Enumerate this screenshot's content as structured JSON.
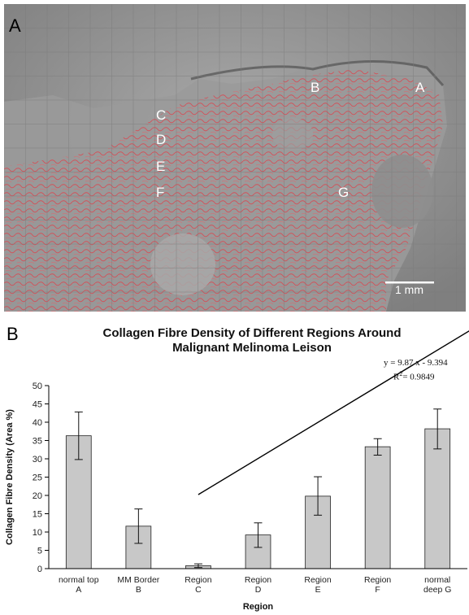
{
  "figure": {
    "panel_a_letter": "A",
    "panel_b_letter": "B",
    "region_markers": [
      "A",
      "B",
      "C",
      "D",
      "E",
      "F",
      "G"
    ],
    "scale_bar_label": "1 mm"
  },
  "chart_data": {
    "type": "bar",
    "title_line1": "Collagen Fibre Density of Different Regions Around",
    "title_line2": "Malignant Melinoma Leison",
    "xlabel": "Region",
    "ylabel": "Collagen Fibre Density (Area %)",
    "ylim": [
      0,
      50
    ],
    "yticks": [
      0,
      5,
      10,
      15,
      20,
      25,
      30,
      35,
      40,
      45,
      50
    ],
    "categories": [
      [
        "normal  top",
        "A"
      ],
      [
        "MM  Border",
        "B"
      ],
      [
        "Region",
        "C"
      ],
      [
        "Region",
        "D"
      ],
      [
        "Region",
        "E"
      ],
      [
        "Region",
        "F"
      ],
      [
        "normal",
        "deep  G"
      ]
    ],
    "values": [
      36.3,
      11.6,
      0.8,
      9.2,
      19.8,
      33.3,
      38.2
    ],
    "error_low": [
      29.8,
      6.9,
      0.3,
      5.8,
      14.6,
      31.0,
      32.7
    ],
    "error_high": [
      42.8,
      16.3,
      1.3,
      12.5,
      25.1,
      35.5,
      43.6
    ],
    "bar_color": "#c8c8c8",
    "trendline": {
      "slope": 9.87,
      "intercept": -9.394,
      "x_start": 3,
      "x_end": 8
    },
    "equation_line1": "y = 9.87 x - 9.394",
    "equation_r2": "R",
    "equation_r2_sup": "2",
    "equation_r2_value": "= 0.9849",
    "grid": false,
    "legend": "none"
  }
}
